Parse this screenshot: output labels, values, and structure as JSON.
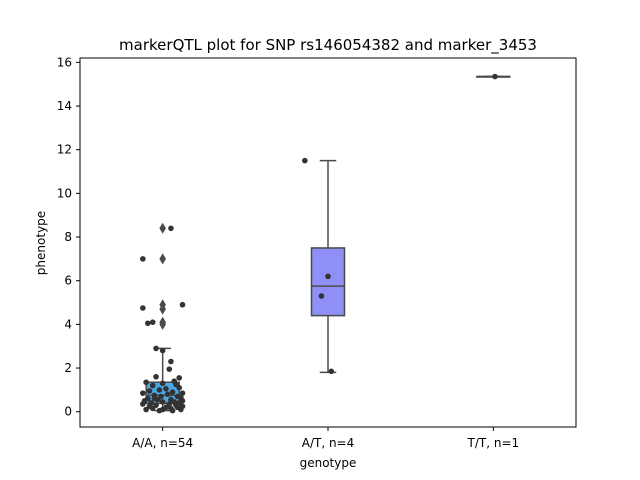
{
  "chart_data": {
    "type": "box",
    "title": "markerQTL plot for SNP rs146054382 and marker_3453",
    "xlabel": "genotype",
    "ylabel": "phenotype",
    "ylim": [
      -0.7,
      16.2
    ],
    "yticks": [
      0,
      2,
      4,
      6,
      8,
      10,
      12,
      14,
      16
    ],
    "categories": [
      "A/A, n=54",
      "A/T, n=4",
      "T/T, n=1"
    ],
    "colors": [
      "#4aa8e8",
      "#8f8ff5",
      "#d98fe8"
    ],
    "box_edge_color": "#4a4a4a",
    "point_color": "#333333",
    "boxes": [
      {
        "category": "A/A, n=54",
        "q1": 0.38,
        "median": 0.75,
        "q3": 1.35,
        "whisker_low": 0.05,
        "whisker_high": 2.9,
        "outliers": [
          8.4,
          7.0,
          4.9,
          4.7,
          4.1,
          4.0
        ]
      },
      {
        "category": "A/T, n=4",
        "q1": 4.4,
        "median": 5.75,
        "q3": 7.5,
        "whisker_low": 1.8,
        "whisker_high": 11.5,
        "outliers": []
      },
      {
        "category": "T/T, n=1",
        "q1": 15.35,
        "median": 15.35,
        "q3": 15.35,
        "whisker_low": 15.35,
        "whisker_high": 15.35,
        "outliers": []
      }
    ],
    "points": [
      {
        "category": "A/A, n=54",
        "values": [
          8.4,
          7.0,
          4.75,
          4.9,
          4.1,
          4.05,
          2.9,
          2.8,
          2.3,
          1.95,
          1.6,
          1.55,
          1.35,
          1.3,
          1.25,
          1.2,
          1.1,
          1.05,
          1.0,
          0.95,
          0.9,
          0.85,
          0.85,
          0.8,
          0.75,
          0.7,
          0.7,
          0.65,
          0.6,
          0.55,
          0.55,
          0.5,
          0.5,
          0.45,
          0.45,
          0.4,
          0.4,
          0.35,
          0.35,
          0.3,
          0.3,
          0.25,
          0.25,
          0.2,
          0.2,
          0.15,
          0.15,
          0.1,
          0.1,
          0.1,
          0.05,
          0.05,
          1.4,
          0.6
        ],
        "jitter": [
          0.05,
          -0.12,
          -0.12,
          0.12,
          -0.06,
          -0.09,
          -0.04,
          0.0,
          0.05,
          0.04,
          -0.04,
          0.1,
          -0.1,
          0.0,
          0.08,
          -0.06,
          0.1,
          0.02,
          -0.02,
          -0.08,
          0.06,
          -0.12,
          0.12,
          0.03,
          -0.05,
          0.09,
          -0.01,
          0.11,
          -0.09,
          0.05,
          -0.03,
          0.12,
          -0.11,
          0.07,
          0.0,
          -0.07,
          0.1,
          0.04,
          -0.12,
          0.08,
          -0.04,
          0.12,
          -0.08,
          0.02,
          0.09,
          -0.06,
          0.05,
          0.11,
          -0.1,
          0.0,
          0.06,
          -0.02,
          0.07,
          -0.05
        ]
      },
      {
        "category": "A/T, n=4",
        "values": [
          11.5,
          6.2,
          5.3,
          1.85
        ],
        "jitter": [
          -0.14,
          0.0,
          -0.04,
          0.02
        ]
      },
      {
        "category": "T/T, n=1",
        "values": [
          15.35
        ],
        "jitter": [
          0.01
        ]
      }
    ]
  }
}
